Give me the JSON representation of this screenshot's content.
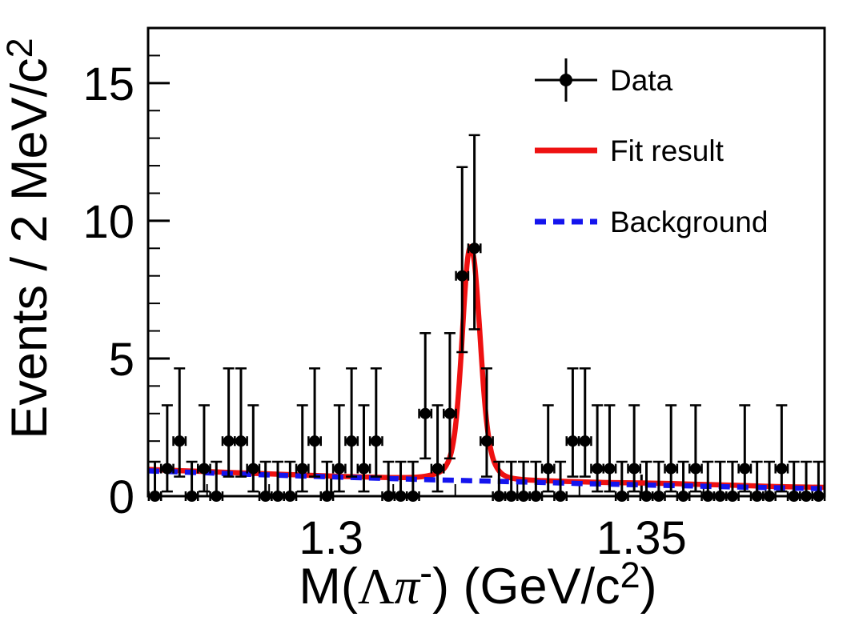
{
  "figure": {
    "x_title": {
      "p1": "M(",
      "lambda": "Λ",
      "pi": "π",
      "minus_sup": "-",
      "p2": ") (GeV/c",
      "sup2": "2",
      "p3": ")"
    },
    "y_title": {
      "p1": "Events / 2 MeV/c",
      "sup2": "2"
    }
  },
  "axes": {
    "x": {
      "range": [
        1.2705,
        1.3795
      ],
      "major_ticks": [
        {
          "value": 1.3,
          "label": "1.3"
        },
        {
          "value": 1.35,
          "label": "1.35"
        }
      ],
      "minor_tick_step": 0.01
    },
    "y": {
      "range": [
        0,
        17
      ],
      "major_ticks": [
        {
          "value": 0,
          "label": "0"
        },
        {
          "value": 5,
          "label": "5"
        },
        {
          "value": 10,
          "label": "10"
        },
        {
          "value": 15,
          "label": "15"
        }
      ],
      "minor_tick_step": 1
    }
  },
  "legend": {
    "items": [
      {
        "label": "Data",
        "type": "data-marker",
        "color": "#000000"
      },
      {
        "label": "Fit result",
        "type": "solid-line",
        "color": "#ee1111"
      },
      {
        "label": "Background",
        "type": "dashed-line",
        "color": "#1414ee"
      }
    ]
  },
  "chart_data": {
    "type": "scatter",
    "title": "",
    "xlabel": "M(Lambda pi-) (GeV/c^2)",
    "ylabel": "Events / 2 MeV/c^2",
    "xlim": [
      1.2705,
      1.3795
    ],
    "ylim": [
      0,
      17
    ],
    "grid": false,
    "legend_position": "top-right",
    "bin_width_gev": 0.002,
    "data_points": {
      "first_bin_center": 1.2716,
      "bin_step": 0.00198,
      "x_half_width": 0.00099,
      "values": [
        0,
        1,
        2,
        0,
        1,
        0,
        2,
        2,
        1,
        0,
        0,
        0,
        1,
        2,
        0,
        1,
        2,
        1,
        2,
        0,
        0,
        0,
        3,
        1,
        3,
        8,
        9,
        2,
        0,
        0,
        0,
        0,
        1,
        0,
        2,
        2,
        1,
        1,
        0,
        1,
        0,
        0,
        1,
        0,
        1,
        0,
        0,
        0,
        1,
        0,
        0,
        1,
        0,
        0,
        0
      ]
    },
    "poisson_errors": {
      "0": {
        "up": 1.25,
        "down": 0
      },
      "1": {
        "up": 2.3,
        "down": 0.83
      },
      "2": {
        "up": 2.64,
        "down": 1.29
      },
      "3": {
        "up": 2.92,
        "down": 1.63
      },
      "8": {
        "up": 3.95,
        "down": 2.77
      },
      "9": {
        "up": 4.11,
        "down": 2.94
      }
    },
    "series": [
      {
        "name": "Fit result",
        "type": "line",
        "color": "#ee1111",
        "width": 6.5,
        "points": [
          [
            1.2705,
            0.97
          ],
          [
            1.276,
            0.925
          ],
          [
            1.282,
            0.875
          ],
          [
            1.288,
            0.825
          ],
          [
            1.294,
            0.775
          ],
          [
            1.3,
            0.73
          ],
          [
            1.306,
            0.695
          ],
          [
            1.311,
            0.675
          ],
          [
            1.314,
            0.695
          ],
          [
            1.316,
            0.76
          ],
          [
            1.3175,
            0.88
          ],
          [
            1.3185,
            1.1
          ],
          [
            1.3193,
            1.55
          ],
          [
            1.3199,
            2.3
          ],
          [
            1.3204,
            3.4
          ],
          [
            1.3209,
            5.0
          ],
          [
            1.3214,
            6.9
          ],
          [
            1.3218,
            8.2
          ],
          [
            1.3221,
            8.8
          ],
          [
            1.3224,
            9.05
          ],
          [
            1.3227,
            8.95
          ],
          [
            1.3231,
            8.45
          ],
          [
            1.3235,
            7.4
          ],
          [
            1.324,
            5.8
          ],
          [
            1.3245,
            4.1
          ],
          [
            1.325,
            2.8
          ],
          [
            1.3255,
            1.95
          ],
          [
            1.3261,
            1.35
          ],
          [
            1.3268,
            1.0
          ],
          [
            1.3277,
            0.78
          ],
          [
            1.329,
            0.66
          ],
          [
            1.331,
            0.6
          ],
          [
            1.334,
            0.565
          ],
          [
            1.338,
            0.535
          ],
          [
            1.342,
            0.51
          ],
          [
            1.346,
            0.49
          ],
          [
            1.35,
            0.48
          ],
          [
            1.355,
            0.455
          ],
          [
            1.36,
            0.425
          ],
          [
            1.365,
            0.395
          ],
          [
            1.37,
            0.36
          ],
          [
            1.375,
            0.335
          ],
          [
            1.3795,
            0.32
          ]
        ]
      },
      {
        "name": "Background",
        "type": "dashed-line",
        "color": "#1414ee",
        "width": 6.5,
        "dash": [
          14,
          9
        ],
        "points": [
          [
            1.2705,
            0.92
          ],
          [
            1.28,
            0.845
          ],
          [
            1.29,
            0.77
          ],
          [
            1.3,
            0.7
          ],
          [
            1.31,
            0.635
          ],
          [
            1.32,
            0.575
          ],
          [
            1.33,
            0.52
          ],
          [
            1.34,
            0.46
          ],
          [
            1.35,
            0.41
          ],
          [
            1.36,
            0.36
          ],
          [
            1.37,
            0.31
          ],
          [
            1.3795,
            0.27
          ]
        ]
      }
    ]
  }
}
